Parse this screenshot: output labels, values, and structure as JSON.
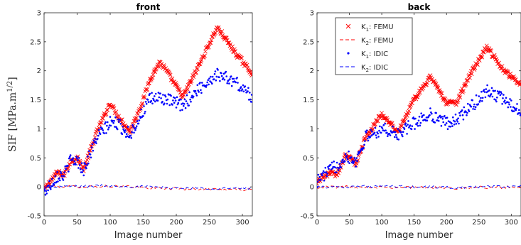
{
  "chart_data": [
    {
      "type": "scatter",
      "title": "front",
      "xlabel": "Image number",
      "ylabel": "SIF [MPa.m",
      "ylabel_exp": "1/2",
      "ylabel_close": "]",
      "xlim": [
        0,
        315
      ],
      "ylim": [
        -0.5,
        3
      ],
      "xticks": [
        0,
        50,
        100,
        150,
        200,
        250,
        300
      ],
      "yticks": [
        -0.5,
        0,
        0.5,
        1,
        1.5,
        2,
        2.5,
        3
      ],
      "ytick_labels": [
        "-0.5",
        "0",
        "0.5",
        "1",
        "1.5",
        "2",
        "2.5",
        "3"
      ],
      "grid": false,
      "series": [
        {
          "name": "K1: FEMU",
          "marker": "x",
          "color": "#ff0000",
          "x": [
            0,
            20,
            30,
            40,
            50,
            60,
            80,
            100,
            110,
            130,
            150,
            160,
            175,
            185,
            210,
            230,
            262,
            290,
            315
          ],
          "y": [
            -0.05,
            0.25,
            0.2,
            0.45,
            0.5,
            0.3,
            0.95,
            1.45,
            1.25,
            0.95,
            1.5,
            1.85,
            2.15,
            2.0,
            1.55,
            2.0,
            2.75,
            2.3,
            1.95
          ]
        },
        {
          "name": "K2: FEMU",
          "marker": "dash",
          "color": "#ff0000",
          "x": [
            0,
            100,
            200,
            315
          ],
          "y": [
            0,
            0.01,
            -0.03,
            -0.05
          ]
        },
        {
          "name": "K1: IDIC",
          "marker": "dot",
          "color": "#0000ff",
          "x": [
            0,
            20,
            30,
            40,
            50,
            60,
            80,
            100,
            110,
            130,
            150,
            160,
            175,
            185,
            210,
            230,
            262,
            290,
            315
          ],
          "y": [
            -0.1,
            0.2,
            0.2,
            0.45,
            0.45,
            0.3,
            0.85,
            1.1,
            1.1,
            0.9,
            1.3,
            1.5,
            1.55,
            1.5,
            1.4,
            1.65,
            1.95,
            1.8,
            1.55
          ]
        },
        {
          "name": "K2: IDIC",
          "marker": "dash",
          "color": "#0000ff",
          "x": [
            0,
            100,
            200,
            315
          ],
          "y": [
            0,
            0.02,
            -0.02,
            -0.03
          ]
        }
      ]
    },
    {
      "type": "scatter",
      "title": "back",
      "xlabel": "Image number",
      "xlim": [
        0,
        315
      ],
      "ylim": [
        -0.5,
        3
      ],
      "xticks": [
        0,
        50,
        100,
        150,
        200,
        250,
        300
      ],
      "yticks": [
        -0.5,
        0,
        0.5,
        1,
        1.5,
        2,
        2.5,
        3
      ],
      "ytick_labels": [
        "-0.5",
        "0",
        "0.5",
        "1",
        "1.5",
        "2",
        "2.5",
        "3"
      ],
      "grid": false,
      "legend": {
        "placement": "top-left",
        "entries": [
          {
            "prefix": "K",
            "sub": "1",
            "suffix": ": FEMU",
            "marker": "x",
            "color": "#ff0000"
          },
          {
            "prefix": "K",
            "sub": "2",
            "suffix": ": FEMU",
            "marker": "dash",
            "color": "#ff0000"
          },
          {
            "prefix": "K",
            "sub": "1",
            "suffix": ": IDIC",
            "marker": "dot",
            "color": "#0000ff"
          },
          {
            "prefix": "K",
            "sub": "2",
            "suffix": ": IDIC",
            "marker": "dash",
            "color": "#0000ff"
          }
        ]
      },
      "series": [
        {
          "name": "K1: FEMU",
          "marker": "x",
          "color": "#ff0000",
          "x": [
            0,
            20,
            30,
            45,
            60,
            75,
            100,
            125,
            150,
            175,
            200,
            215,
            240,
            262,
            290,
            315
          ],
          "y": [
            0.1,
            0.25,
            0.2,
            0.55,
            0.4,
            0.85,
            1.25,
            0.95,
            1.5,
            1.9,
            1.45,
            1.45,
            2.0,
            2.4,
            2.0,
            1.75
          ]
        },
        {
          "name": "K2: FEMU",
          "marker": "dash",
          "color": "#ff0000",
          "x": [
            0,
            100,
            200,
            315
          ],
          "y": [
            0,
            0,
            -0.02,
            0
          ]
        },
        {
          "name": "K1: IDIC",
          "marker": "dot",
          "color": "#0000ff",
          "x": [
            0,
            20,
            30,
            45,
            60,
            75,
            100,
            125,
            150,
            175,
            200,
            215,
            240,
            262,
            290,
            315
          ],
          "y": [
            0.1,
            0.3,
            0.35,
            0.55,
            0.45,
            0.85,
            1.0,
            0.9,
            1.1,
            1.25,
            1.1,
            1.15,
            1.4,
            1.65,
            1.5,
            1.3
          ]
        },
        {
          "name": "K2: IDIC",
          "marker": "dash",
          "color": "#0000ff",
          "x": [
            0,
            100,
            200,
            315
          ],
          "y": [
            0,
            0.01,
            -0.01,
            0.01
          ]
        }
      ]
    }
  ]
}
